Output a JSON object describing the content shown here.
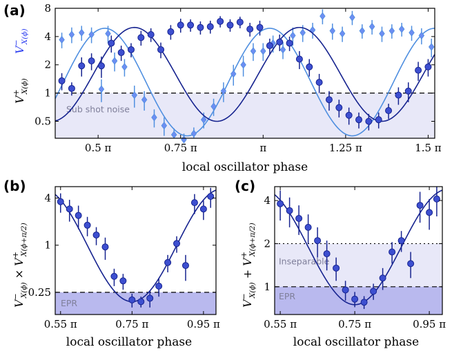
{
  "colors": {
    "dark_series": "#16238f",
    "dark_marker_fill": "#3d4fd0",
    "light_series": "#4f8fe0",
    "light_marker_fill": "#6d8ef2",
    "shade_light": "#e8e8f8",
    "shade_dark": "#b9b9ee",
    "blue_label": "#2b3df0"
  },
  "chart_data": [
    {
      "panel": "(a)",
      "type": "scatter",
      "xlabel": "local oscillator phase",
      "ylabel_parts": {
        "minus": "V",
        "minus_sup": "−",
        "minus_sub": "X(ϕ)",
        "plus": "V",
        "plus_sup": "+",
        "plus_sub": "X(ϕ)"
      },
      "yscale": "log",
      "xlim": [
        0.37,
        1.52
      ],
      "ylim": [
        0.33,
        8
      ],
      "xticks": [
        0.5,
        0.75,
        1.0,
        1.25,
        1.5
      ],
      "xtick_labels": [
        "0.5 π",
        "0.75 π",
        "π",
        "1.25 π",
        "1.5 π"
      ],
      "yticks": [
        0.5,
        1,
        2,
        4,
        8
      ],
      "ytick_labels": [
        "0.5",
        "1",
        "2",
        "4",
        "8"
      ],
      "threshold": 1,
      "region_label": "Sub shot noise",
      "series": [
        {
          "key": "plus",
          "marker": "circle",
          "x": [
            0.39,
            0.42,
            0.45,
            0.48,
            0.51,
            0.54,
            0.57,
            0.6,
            0.63,
            0.66,
            0.69,
            0.72,
            0.75,
            0.78,
            0.81,
            0.84,
            0.87,
            0.9,
            0.93,
            0.96,
            0.99,
            1.02,
            1.05,
            1.08,
            1.11,
            1.14,
            1.17,
            1.2,
            1.23,
            1.26,
            1.29,
            1.32,
            1.35,
            1.38,
            1.41,
            1.44,
            1.47,
            1.5
          ],
          "y": [
            1.35,
            1.12,
            1.95,
            2.2,
            1.95,
            3.4,
            2.7,
            2.9,
            3.9,
            4.2,
            2.9,
            4.5,
            5.3,
            5.3,
            5.0,
            5.1,
            5.8,
            5.3,
            5.7,
            4.8,
            5.0,
            3.2,
            3.5,
            3.4,
            2.3,
            1.9,
            1.3,
            0.85,
            0.7,
            0.58,
            0.52,
            0.5,
            0.52,
            0.65,
            0.95,
            1.05,
            1.75,
            1.9
          ],
          "err": [
            0.28,
            0.18,
            0.45,
            0.45,
            0.5,
            0.7,
            0.5,
            0.5,
            0.7,
            0.7,
            0.55,
            0.8,
            0.9,
            0.8,
            0.8,
            0.8,
            0.8,
            0.8,
            0.8,
            0.8,
            0.9,
            0.6,
            0.7,
            0.6,
            0.5,
            0.4,
            0.3,
            0.2,
            0.15,
            0.12,
            0.1,
            0.1,
            0.1,
            0.12,
            0.2,
            0.25,
            0.4,
            0.4
          ],
          "fit": {
            "min": 0.5,
            "max": 5.0,
            "center": 0.86
          }
        },
        {
          "key": "minus",
          "marker": "diamond",
          "x": [
            0.39,
            0.42,
            0.45,
            0.48,
            0.51,
            0.53,
            0.55,
            0.58,
            0.61,
            0.64,
            0.67,
            0.7,
            0.73,
            0.76,
            0.79,
            0.82,
            0.85,
            0.88,
            0.91,
            0.94,
            0.97,
            1.0,
            1.03,
            1.06,
            1.09,
            1.12,
            1.15,
            1.18,
            1.21,
            1.24,
            1.27,
            1.3,
            1.33,
            1.36,
            1.39,
            1.42,
            1.45,
            1.48,
            1.51
          ],
          "y": [
            3.7,
            4.2,
            4.4,
            4.2,
            1.1,
            4.3,
            2.2,
            1.9,
            0.95,
            0.85,
            0.55,
            0.45,
            0.36,
            0.32,
            0.37,
            0.52,
            0.72,
            1.05,
            1.6,
            2.0,
            2.8,
            2.8,
            3.4,
            2.9,
            4.1,
            4.4,
            4.7,
            6.6,
            4.6,
            4.3,
            6.4,
            4.6,
            5.1,
            4.3,
            4.6,
            4.8,
            4.4,
            4.1,
            3.1
          ],
          "err": [
            0.7,
            0.8,
            0.8,
            0.8,
            0.3,
            0.9,
            0.5,
            0.4,
            0.25,
            0.2,
            0.12,
            0.1,
            0.06,
            0.05,
            0.06,
            0.1,
            0.15,
            0.25,
            0.4,
            0.5,
            0.6,
            0.6,
            0.7,
            0.6,
            0.9,
            0.9,
            0.9,
            1.2,
            0.9,
            0.8,
            1.1,
            0.8,
            0.9,
            0.8,
            0.8,
            0.8,
            0.8,
            0.8,
            0.7
          ],
          "fit": {
            "min": 0.35,
            "max": 4.9,
            "center": 0.77
          }
        }
      ]
    },
    {
      "panel": "(b)",
      "type": "scatter",
      "xlabel": "local oscillator phase",
      "ylabel_parts": {
        "a": "V",
        "a_sup": "−",
        "a_sub": "X(ϕ)",
        "op": " × ",
        "b": "V",
        "b_sup": "+",
        "b_sub": "X(ϕ+π/2)"
      },
      "yscale": "log",
      "xlim": [
        0.535,
        0.985
      ],
      "ylim": [
        0.13,
        5.6
      ],
      "xticks": [
        0.55,
        0.75,
        0.95
      ],
      "xtick_labels": [
        "0.55 π",
        "0.75 π",
        "0.95 π"
      ],
      "yticks": [
        0.25,
        1,
        4
      ],
      "ytick_labels": [
        "0.25",
        "1",
        "4"
      ],
      "threshold": 0.25,
      "region_label": "EPR",
      "series": [
        {
          "marker": "circle",
          "x": [
            0.55,
            0.575,
            0.6,
            0.625,
            0.65,
            0.675,
            0.7,
            0.725,
            0.75,
            0.775,
            0.8,
            0.825,
            0.85,
            0.875,
            0.9,
            0.925,
            0.95,
            0.97
          ],
          "y": [
            3.6,
            2.9,
            2.4,
            1.8,
            1.35,
            0.95,
            0.4,
            0.35,
            0.2,
            0.19,
            0.21,
            0.3,
            0.6,
            1.05,
            0.55,
            3.5,
            2.9,
            4.2
          ],
          "err": [
            1.0,
            0.9,
            0.8,
            0.5,
            0.35,
            0.3,
            0.1,
            0.08,
            0.04,
            0.03,
            0.05,
            0.08,
            0.15,
            0.25,
            0.2,
            1.0,
            0.8,
            1.2
          ],
          "fit": {
            "min": 0.19,
            "max": 5.2,
            "center": 0.75
          }
        }
      ]
    },
    {
      "panel": "(c)",
      "type": "scatter",
      "xlabel": "local oscillator phase",
      "ylabel_parts": {
        "a": "V",
        "a_sup": "−",
        "a_sub": "X(ϕ)",
        "op": " + ",
        "b": "V",
        "b_sup": "+",
        "b_sub": "X(ϕ+π/2)"
      },
      "yscale": "log",
      "xlim": [
        0.535,
        0.985
      ],
      "ylim": [
        0.64,
        5.0
      ],
      "xticks": [
        0.55,
        0.75,
        0.95
      ],
      "xtick_labels": [
        "0.55 π",
        "0.75 π",
        "0.95 π"
      ],
      "yticks": [
        1,
        2,
        4
      ],
      "ytick_labels": [
        "1",
        "2",
        "4"
      ],
      "threshold": 1,
      "threshold2": 2,
      "region_labels": [
        "Inseparable",
        "EPR"
      ],
      "series": [
        {
          "marker": "circle",
          "x": [
            0.55,
            0.575,
            0.6,
            0.625,
            0.65,
            0.675,
            0.7,
            0.725,
            0.75,
            0.775,
            0.8,
            0.825,
            0.85,
            0.875,
            0.9,
            0.925,
            0.95,
            0.97
          ],
          "y": [
            3.8,
            3.4,
            3.0,
            2.6,
            2.1,
            1.7,
            1.35,
            0.95,
            0.82,
            0.78,
            0.93,
            1.15,
            1.75,
            2.1,
            1.45,
            3.7,
            3.3,
            4.1
          ],
          "err": [
            0.9,
            0.8,
            0.7,
            0.6,
            0.5,
            0.4,
            0.25,
            0.15,
            0.1,
            0.08,
            0.12,
            0.2,
            0.3,
            0.35,
            0.3,
            0.9,
            0.8,
            1.0
          ],
          "fit": {
            "min": 0.75,
            "max": 4.8,
            "center": 0.75
          }
        }
      ]
    }
  ]
}
